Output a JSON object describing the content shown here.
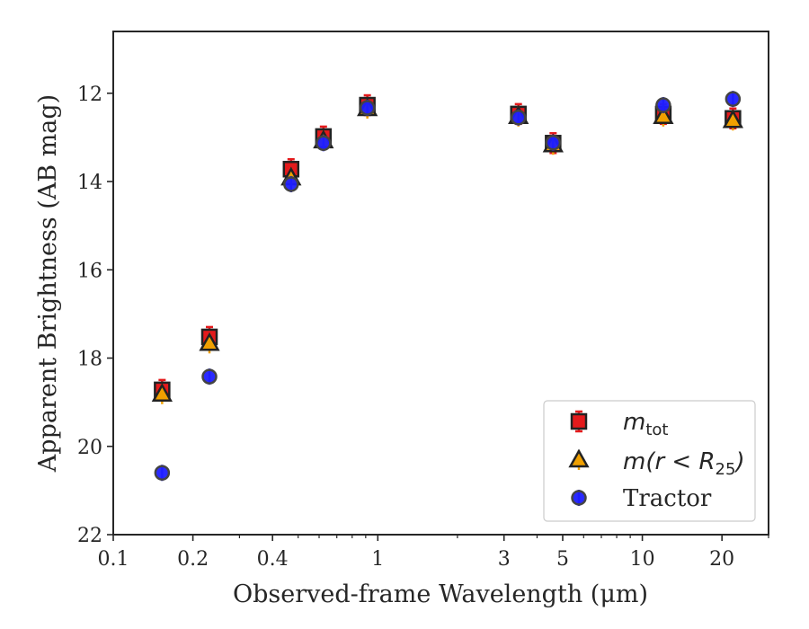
{
  "chart_data": {
    "type": "scatter",
    "xlabel": "Observed-frame Wavelength (μm)",
    "ylabel": "Apparent Brightness (AB mag)",
    "xscale": "log",
    "xlim": [
      0.1,
      30
    ],
    "ylim": [
      22,
      10.6
    ],
    "y_inverted": true,
    "x_ticks": [
      {
        "value": 0.1,
        "label": "0.1"
      },
      {
        "value": 0.2,
        "label": "0.2"
      },
      {
        "value": 0.4,
        "label": "0.4"
      },
      {
        "value": 1,
        "label": "1"
      },
      {
        "value": 3,
        "label": "3"
      },
      {
        "value": 5,
        "label": "5"
      },
      {
        "value": 10,
        "label": "10"
      },
      {
        "value": 20,
        "label": "20"
      }
    ],
    "y_ticks": [
      {
        "value": 12,
        "label": "12"
      },
      {
        "value": 14,
        "label": "14"
      },
      {
        "value": 16,
        "label": "16"
      },
      {
        "value": 18,
        "label": "18"
      },
      {
        "value": 20,
        "label": "20"
      },
      {
        "value": 22,
        "label": "22"
      }
    ],
    "grid": false,
    "legend": {
      "placement": "bottom-right",
      "entries": [
        {
          "series": 0,
          "text": "m",
          "sub": "tot",
          "style": "math"
        },
        {
          "series": 1,
          "text": "m(r < R",
          "sub": "25",
          "suffix": ")",
          "style": "math"
        },
        {
          "series": 2,
          "text": "Tractor",
          "style": "plain"
        }
      ]
    },
    "series": [
      {
        "name": "m_tot",
        "marker": "square",
        "color": "#e41a1c",
        "edge": "#222222",
        "points": [
          {
            "x": 0.153,
            "y": 18.72
          },
          {
            "x": 0.231,
            "y": 17.52
          },
          {
            "x": 0.47,
            "y": 13.72
          },
          {
            "x": 0.623,
            "y": 12.98
          },
          {
            "x": 0.913,
            "y": 12.27
          },
          {
            "x": 3.4,
            "y": 12.47
          },
          {
            "x": 4.6,
            "y": 13.13
          },
          {
            "x": 12.0,
            "y": 12.47
          },
          {
            "x": 22.0,
            "y": 12.57
          }
        ]
      },
      {
        "name": "m(r < R25)",
        "marker": "triangle",
        "color": "#f0a000",
        "edge": "#222222",
        "points": [
          {
            "x": 0.153,
            "y": 18.82
          },
          {
            "x": 0.231,
            "y": 17.67
          },
          {
            "x": 0.47,
            "y": 13.92
          },
          {
            "x": 0.623,
            "y": 13.08
          },
          {
            "x": 0.913,
            "y": 12.35
          },
          {
            "x": 3.4,
            "y": 12.53
          },
          {
            "x": 4.6,
            "y": 13.17
          },
          {
            "x": 12.0,
            "y": 12.53
          },
          {
            "x": 22.0,
            "y": 12.62
          }
        ]
      },
      {
        "name": "Tractor",
        "marker": "circle",
        "color": "#1f1fff",
        "edge": "#444444",
        "points": [
          {
            "x": 0.153,
            "y": 20.6
          },
          {
            "x": 0.231,
            "y": 18.42
          },
          {
            "x": 0.47,
            "y": 14.06
          },
          {
            "x": 0.623,
            "y": 13.13
          },
          {
            "x": 0.913,
            "y": 12.33
          },
          {
            "x": 3.4,
            "y": 12.55
          },
          {
            "x": 4.6,
            "y": 13.12
          },
          {
            "x": 12.0,
            "y": 12.27
          },
          {
            "x": 22.0,
            "y": 12.13
          }
        ]
      }
    ]
  }
}
